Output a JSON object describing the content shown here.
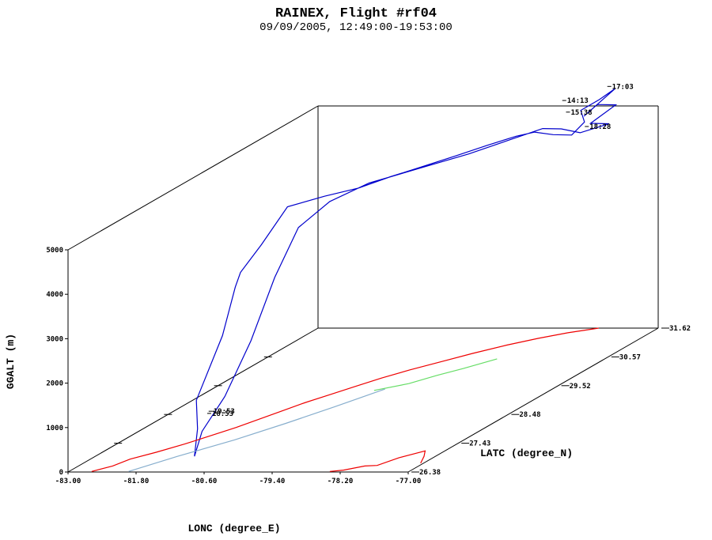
{
  "chart_data": {
    "type": "line",
    "title": "RAINEX, Flight #rf04",
    "subtitle": "09/09/2005, 12:49:00-19:53:00",
    "xlabel": "LONC (degree_E)",
    "ylabel": "LATC (degree_N)",
    "zlabel": "GGALT (m)",
    "xlim": [
      -83.0,
      -77.0
    ],
    "ylim": [
      26.38,
      31.62
    ],
    "zlim": [
      0,
      5000
    ],
    "x_ticks": [
      "-83.00",
      "-81.80",
      "-80.60",
      "-79.40",
      "-78.20",
      "-77.00"
    ],
    "y_ticks": [
      "26.38",
      "27.43",
      "28.48",
      "29.52",
      "30.57",
      "31.62"
    ],
    "z_ticks": [
      "0",
      "1000",
      "2000",
      "3000",
      "4000",
      "5000"
    ],
    "annotations": [
      "14:13",
      "17:03",
      "15:38",
      "18:28",
      "19:53",
      "18:53"
    ],
    "series": [
      {
        "color": "#0000cc",
        "points": [
          [
            -81.25,
            26.95,
            0
          ],
          [
            -81.22,
            26.98,
            600
          ],
          [
            -81.3,
            27.05,
            1200
          ],
          [
            -81.05,
            27.3,
            2500
          ],
          [
            -80.95,
            27.45,
            3500
          ],
          [
            -80.9,
            27.5,
            3800
          ],
          [
            -80.7,
            27.7,
            4300
          ],
          [
            -80.45,
            27.95,
            5000
          ],
          [
            -80.05,
            28.25,
            5050
          ],
          [
            -79.7,
            28.55,
            5050
          ],
          [
            -79.35,
            28.8,
            5150
          ],
          [
            -79.05,
            29.05,
            5200
          ],
          [
            -78.7,
            29.4,
            5250
          ],
          [
            -78.4,
            29.7,
            5300
          ],
          [
            -78.1,
            29.95,
            5350
          ],
          [
            -77.9,
            30.1,
            5350
          ],
          [
            -77.7,
            30.25,
            5200
          ],
          [
            -77.5,
            30.4,
            5100
          ],
          [
            -77.4,
            30.55,
            5300
          ],
          [
            -77.55,
            30.65,
            5500
          ],
          [
            -77.35,
            30.8,
            5650
          ],
          [
            -77.2,
            30.95,
            5800
          ],
          [
            -77.45,
            30.6,
            5400
          ],
          [
            -77.3,
            30.7,
            5600
          ],
          [
            -77.1,
            30.85,
            5500
          ],
          [
            -77.25,
            30.5,
            5300
          ],
          [
            -77.05,
            30.65,
            5200
          ],
          [
            -77.35,
            30.4,
            5150
          ],
          [
            -77.6,
            30.3,
            5300
          ],
          [
            -77.8,
            30.15,
            5400
          ],
          [
            -78.2,
            29.85,
            5300
          ],
          [
            -78.6,
            29.55,
            5200
          ],
          [
            -79.1,
            29.1,
            5150
          ],
          [
            -79.6,
            28.65,
            5100
          ],
          [
            -80.0,
            28.3,
            4900
          ],
          [
            -80.3,
            28.0,
            4500
          ],
          [
            -80.55,
            27.8,
            3500
          ],
          [
            -80.8,
            27.6,
            2200
          ],
          [
            -81.05,
            27.35,
            1100
          ],
          [
            -81.2,
            27.05,
            500
          ],
          [
            -81.25,
            26.95,
            0
          ]
        ]
      },
      {
        "color": "#ee0000",
        "points": [
          [
            -82.6,
            26.4,
            0
          ],
          [
            -82.4,
            26.6,
            0
          ],
          [
            -82.3,
            26.85,
            0
          ],
          [
            -82.05,
            27.1,
            0
          ],
          [
            -81.8,
            27.4,
            0
          ],
          [
            -81.6,
            27.7,
            0
          ],
          [
            -81.4,
            28.0,
            0
          ],
          [
            -81.25,
            28.3,
            0
          ],
          [
            -81.1,
            28.6,
            0
          ],
          [
            -80.95,
            28.9,
            0
          ],
          [
            -80.75,
            29.2,
            0
          ],
          [
            -80.55,
            29.5,
            0
          ],
          [
            -80.35,
            29.8,
            0
          ],
          [
            -80.1,
            30.1,
            0
          ],
          [
            -79.8,
            30.4,
            0
          ],
          [
            -79.5,
            30.7,
            0
          ],
          [
            -79.15,
            31.0,
            0
          ],
          [
            -78.8,
            31.25,
            0
          ],
          [
            -78.45,
            31.45,
            0
          ],
          [
            -78.05,
            31.62,
            0
          ]
        ]
      },
      {
        "color": "#ee0000",
        "points": [
          [
            -78.4,
            26.4,
            0
          ],
          [
            -78.2,
            26.45,
            0
          ],
          [
            -77.95,
            26.6,
            0
          ],
          [
            -77.75,
            26.62,
            0
          ],
          [
            -77.6,
            26.9,
            0
          ],
          [
            -77.35,
            27.15,
            0
          ],
          [
            -77.2,
            26.95,
            0
          ],
          [
            -77.05,
            26.7,
            0
          ]
        ]
      },
      {
        "color": "#87aecd",
        "points": [
          [
            -81.95,
            26.4,
            0
          ],
          [
            -81.55,
            26.95,
            0
          ],
          [
            -81.05,
            27.55,
            0
          ],
          [
            -80.65,
            28.15,
            0
          ],
          [
            -80.3,
            28.75,
            0
          ],
          [
            -79.95,
            29.4,
            0
          ]
        ]
      },
      {
        "color": "#66dd66",
        "points": [
          [
            -80.1,
            29.35,
            0
          ],
          [
            -79.7,
            29.6,
            0
          ],
          [
            -79.45,
            29.9,
            0
          ],
          [
            -79.2,
            30.15,
            0
          ],
          [
            -78.9,
            30.5,
            0
          ]
        ]
      }
    ]
  }
}
